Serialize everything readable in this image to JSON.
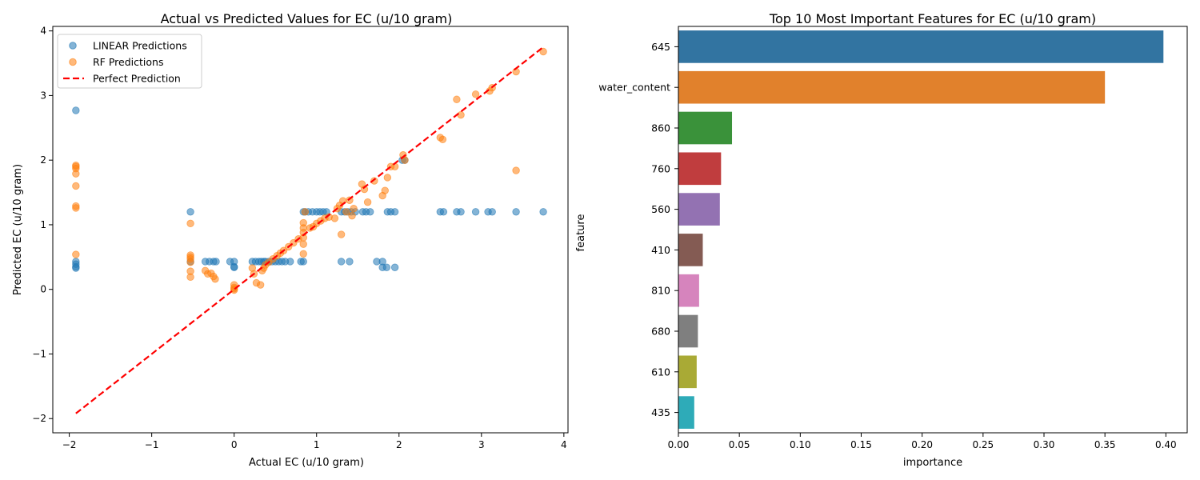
{
  "chart_data": [
    {
      "type": "scatter",
      "title": "Actual vs Predicted Values for EC (u/10 gram)",
      "xlabel": "Actual EC (u/10 gram)",
      "ylabel": "Predicted EC (u/10 gram)",
      "xlim": [
        -2.2,
        4.05
      ],
      "ylim": [
        -2.22,
        4.07
      ],
      "xticks": [
        -2,
        -1,
        0,
        1,
        2,
        3,
        4
      ],
      "yticks": [
        -2,
        -1,
        0,
        1,
        2,
        3,
        4
      ],
      "xtick_labels": [
        "−2",
        "−1",
        "0",
        "1",
        "2",
        "3",
        "4"
      ],
      "ytick_labels": [
        "−2",
        "−1",
        "0",
        "1",
        "2",
        "3",
        "4"
      ],
      "grid": false,
      "legend": "top-left",
      "series": [
        {
          "name": "LINEAR Predictions",
          "kind": "scatter",
          "color": "#1f77b4",
          "points": [
            [
              -1.92,
              2.77
            ],
            [
              -1.92,
              0.43
            ],
            [
              -1.92,
              0.39
            ],
            [
              -1.92,
              0.35
            ],
            [
              -1.92,
              0.33
            ],
            [
              -0.53,
              1.2
            ],
            [
              -0.53,
              0.43
            ],
            [
              -0.35,
              0.43
            ],
            [
              -0.3,
              0.43
            ],
            [
              -0.25,
              0.43
            ],
            [
              -0.22,
              0.43
            ],
            [
              -0.05,
              0.43
            ],
            [
              0,
              0.43
            ],
            [
              0,
              0.35
            ],
            [
              0,
              0.34
            ],
            [
              0.22,
              0.43
            ],
            [
              0.26,
              0.43
            ],
            [
              0.3,
              0.43
            ],
            [
              0.33,
              0.43
            ],
            [
              0.36,
              0.43
            ],
            [
              0.38,
              0.43
            ],
            [
              0.42,
              0.43
            ],
            [
              0.46,
              0.43
            ],
            [
              0.5,
              0.43
            ],
            [
              0.54,
              0.43
            ],
            [
              0.58,
              0.43
            ],
            [
              0.62,
              0.43
            ],
            [
              0.68,
              0.43
            ],
            [
              0.81,
              0.43
            ],
            [
              0.84,
              0.43
            ],
            [
              0.84,
              1.2
            ],
            [
              0.86,
              1.2
            ],
            [
              0.9,
              1.2
            ],
            [
              0.95,
              1.2
            ],
            [
              1.0,
              1.2
            ],
            [
              1.04,
              1.2
            ],
            [
              1.08,
              1.2
            ],
            [
              1.12,
              1.2
            ],
            [
              1.3,
              1.2
            ],
            [
              1.34,
              1.2
            ],
            [
              1.38,
              1.2
            ],
            [
              1.42,
              1.2
            ],
            [
              1.47,
              1.2
            ],
            [
              1.56,
              1.2
            ],
            [
              1.6,
              1.2
            ],
            [
              1.65,
              1.2
            ],
            [
              1.3,
              0.43
            ],
            [
              1.4,
              0.43
            ],
            [
              1.73,
              0.43
            ],
            [
              1.8,
              0.43
            ],
            [
              1.8,
              0.34
            ],
            [
              1.85,
              0.34
            ],
            [
              1.95,
              0.34
            ],
            [
              1.86,
              1.2
            ],
            [
              1.9,
              1.2
            ],
            [
              1.95,
              1.2
            ],
            [
              2.04,
              2.0
            ],
            [
              2.07,
              2.0
            ],
            [
              2.5,
              1.2
            ],
            [
              2.54,
              1.2
            ],
            [
              2.7,
              1.2
            ],
            [
              2.75,
              1.2
            ],
            [
              2.93,
              1.2
            ],
            [
              3.08,
              1.2
            ],
            [
              3.13,
              1.2
            ],
            [
              3.42,
              1.2
            ],
            [
              3.75,
              1.2
            ]
          ]
        },
        {
          "name": "RF Predictions",
          "kind": "scatter",
          "color": "#ff7f0e",
          "points": [
            [
              -1.92,
              1.92
            ],
            [
              -1.92,
              1.9
            ],
            [
              -1.92,
              1.87
            ],
            [
              -1.92,
              1.79
            ],
            [
              -1.92,
              1.6
            ],
            [
              -1.92,
              1.29
            ],
            [
              -1.92,
              1.26
            ],
            [
              -1.92,
              0.54
            ],
            [
              -0.53,
              1.02
            ],
            [
              -0.53,
              0.53
            ],
            [
              -0.53,
              0.5
            ],
            [
              -0.53,
              0.47
            ],
            [
              -0.53,
              0.42
            ],
            [
              -0.53,
              0.28
            ],
            [
              -0.53,
              0.19
            ],
            [
              -0.35,
              0.29
            ],
            [
              -0.32,
              0.24
            ],
            [
              -0.28,
              0.25
            ],
            [
              -0.25,
              0.2
            ],
            [
              -0.23,
              0.16
            ],
            [
              0,
              0.07
            ],
            [
              0,
              0.03
            ],
            [
              0,
              0.01
            ],
            [
              0,
              -0.01
            ],
            [
              0.22,
              0.33
            ],
            [
              0.24,
              0.24
            ],
            [
              0.27,
              0.1
            ],
            [
              0.32,
              0.07
            ],
            [
              0.34,
              0.29
            ],
            [
              0.36,
              0.33
            ],
            [
              0.38,
              0.38
            ],
            [
              0.42,
              0.42
            ],
            [
              0.47,
              0.47
            ],
            [
              0.52,
              0.52
            ],
            [
              0.56,
              0.56
            ],
            [
              0.6,
              0.6
            ],
            [
              0.66,
              0.66
            ],
            [
              0.72,
              0.72
            ],
            [
              0.78,
              0.78
            ],
            [
              0.84,
              0.55
            ],
            [
              0.84,
              0.7
            ],
            [
              0.84,
              0.8
            ],
            [
              0.84,
              0.88
            ],
            [
              0.84,
              0.95
            ],
            [
              0.84,
              1.03
            ],
            [
              0.86,
              1.2
            ],
            [
              0.92,
              0.95
            ],
            [
              0.96,
              0.97
            ],
            [
              1.0,
              1.02
            ],
            [
              1.05,
              1.06
            ],
            [
              1.1,
              1.1
            ],
            [
              1.15,
              1.12
            ],
            [
              1.22,
              1.1
            ],
            [
              1.25,
              1.25
            ],
            [
              1.28,
              1.3
            ],
            [
              1.3,
              0.85
            ],
            [
              1.32,
              1.37
            ],
            [
              1.36,
              1.2
            ],
            [
              1.4,
              1.38
            ],
            [
              1.43,
              1.14
            ],
            [
              1.45,
              1.25
            ],
            [
              1.55,
              1.63
            ],
            [
              1.58,
              1.55
            ],
            [
              1.62,
              1.35
            ],
            [
              1.7,
              1.68
            ],
            [
              1.8,
              1.45
            ],
            [
              1.83,
              1.53
            ],
            [
              1.86,
              1.73
            ],
            [
              1.9,
              1.9
            ],
            [
              1.95,
              1.9
            ],
            [
              2.05,
              2.08
            ],
            [
              2.07,
              2.0
            ],
            [
              2.5,
              2.35
            ],
            [
              2.53,
              2.32
            ],
            [
              2.7,
              2.94
            ],
            [
              2.75,
              2.7
            ],
            [
              2.93,
              3.02
            ],
            [
              3.1,
              3.07
            ],
            [
              3.13,
              3.12
            ],
            [
              3.42,
              3.37
            ],
            [
              3.42,
              1.84
            ],
            [
              3.75,
              3.68
            ]
          ]
        },
        {
          "name": "Perfect Prediction",
          "kind": "line",
          "style": "dashed",
          "color": "#ff0000",
          "x": [
            -1.92,
            3.75
          ],
          "y": [
            -1.92,
            3.75
          ]
        }
      ]
    },
    {
      "type": "bar",
      "orientation": "horizontal",
      "title": "Top 10 Most Important Features for EC (u/10 gram)",
      "xlabel": "importance",
      "ylabel": "feature",
      "xlim": [
        0,
        0.4175
      ],
      "xticks": [
        0,
        0.05,
        0.1,
        0.15,
        0.2,
        0.25,
        0.3,
        0.35,
        0.4
      ],
      "xtick_labels": [
        "0.00",
        "0.05",
        "0.10",
        "0.15",
        "0.20",
        "0.25",
        "0.30",
        "0.35",
        "0.40"
      ],
      "grid": false,
      "categories": [
        "645",
        "water_content",
        "860",
        "760",
        "560",
        "410",
        "810",
        "680",
        "610",
        "435"
      ],
      "values": [
        0.398,
        0.35,
        0.044,
        0.035,
        0.034,
        0.02,
        0.017,
        0.016,
        0.015,
        0.013
      ],
      "colors": [
        "#3274a1",
        "#e1812c",
        "#3a923a",
        "#c03d3e",
        "#9372b2",
        "#845b53",
        "#d684bd",
        "#7f7f7f",
        "#a9aa35",
        "#2eabb8"
      ]
    }
  ]
}
